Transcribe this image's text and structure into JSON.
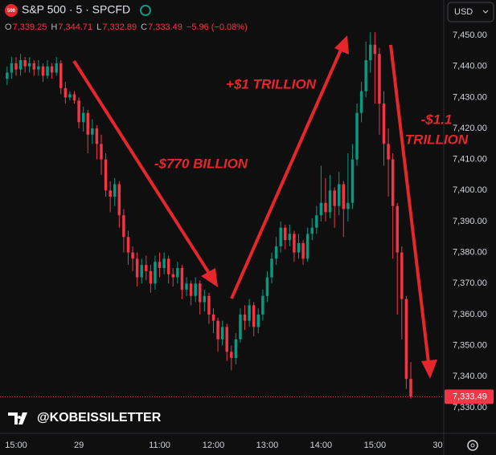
{
  "header": {
    "badge": "500",
    "symbol": "S&P 500 · 5 · SPCFD",
    "readout": [
      {
        "label": "O",
        "value": "7,339.25"
      },
      {
        "label": "H",
        "value": "7,344.71"
      },
      {
        "label": "L",
        "value": "7,332.89"
      },
      {
        "label": "C",
        "value": "7,333.49"
      }
    ],
    "change": "−5.96 (−0.08%)",
    "currency": "USD",
    "watermark": "@KOBEISSILETTER"
  },
  "chart_data": {
    "type": "candlestick",
    "up_color": "#089981",
    "down_color": "#f23645",
    "grid": false,
    "x": [
      0,
      1,
      2,
      3,
      4,
      5,
      6,
      7,
      8,
      9,
      10,
      11,
      12,
      13,
      14,
      15,
      16,
      17,
      18,
      19,
      20,
      21,
      22,
      23,
      24,
      25,
      26,
      27,
      28,
      29,
      30,
      31,
      32,
      33,
      34,
      35,
      36,
      37,
      38,
      39,
      40,
      41,
      42,
      43,
      44,
      45,
      46,
      47,
      48,
      49,
      50,
      51,
      52,
      53,
      54,
      55,
      56,
      57,
      58,
      59,
      60,
      61,
      62,
      63,
      64,
      65,
      66,
      67,
      68,
      69,
      70,
      71,
      72,
      73,
      74,
      75,
      76,
      77,
      78,
      79,
      80,
      81,
      82,
      83,
      84,
      85,
      86,
      87,
      88,
      89,
      90
    ],
    "open": [
      7436,
      7438,
      7441,
      7439,
      7442,
      7440,
      7441,
      7439,
      7440,
      7437,
      7440,
      7438,
      7441,
      7433,
      7430,
      7431,
      7429,
      7422,
      7425,
      7418,
      7420,
      7415,
      7410,
      7400,
      7398,
      7402,
      7392,
      7385,
      7380,
      7378,
      7372,
      7376,
      7374,
      7370,
      7377,
      7375,
      7378,
      7373,
      7372,
      7375,
      7368,
      7370,
      7366,
      7370,
      7364,
      7366,
      7360,
      7358,
      7352,
      7356,
      7348,
      7346,
      7352,
      7360,
      7358,
      7363,
      7356,
      7360,
      7366,
      7372,
      7378,
      7382,
      7388,
      7384,
      7386,
      7380,
      7383,
      7378,
      7386,
      7388,
      7392,
      7396,
      7393,
      7400,
      7395,
      7402,
      7394,
      7396,
      7410,
      7425,
      7432,
      7442,
      7447,
      7444,
      7428,
      7415,
      7410,
      7395,
      7380,
      7365,
      7339.25
    ],
    "high": [
      7440,
      7443,
      7443,
      7444,
      7443,
      7443,
      7442,
      7442,
      7441,
      7442,
      7441,
      7443,
      7442,
      7435,
      7432,
      7432,
      7430,
      7427,
      7426,
      7423,
      7421,
      7418,
      7412,
      7403,
      7404,
      7403,
      7394,
      7387,
      7382,
      7380,
      7378,
      7379,
      7376,
      7379,
      7380,
      7380,
      7379,
      7375,
      7377,
      7376,
      7372,
      7371,
      7372,
      7371,
      7368,
      7367,
      7362,
      7359,
      7358,
      7357,
      7350,
      7354,
      7362,
      7363,
      7365,
      7364,
      7362,
      7368,
      7374,
      7380,
      7385,
      7390,
      7389,
      7389,
      7387,
      7386,
      7384,
      7388,
      7391,
      7395,
      7408,
      7404,
      7405,
      7401,
      7406,
      7403,
      7412,
      7415,
      7428,
      7435,
      7448,
      7451,
      7451,
      7446,
      7432,
      7420,
      7412,
      7396,
      7382,
      7366,
      7344.71
    ],
    "low": [
      7434,
      7436,
      7437,
      7437,
      7438,
      7438,
      7437,
      7437,
      7435,
      7436,
      7436,
      7437,
      7431,
      7428,
      7429,
      7428,
      7420,
      7419,
      7412,
      7415,
      7410,
      7405,
      7398,
      7393,
      7395,
      7388,
      7380,
      7376,
      7374,
      7369,
      7370,
      7371,
      7367,
      7368,
      7372,
      7373,
      7370,
      7369,
      7370,
      7365,
      7366,
      7363,
      7364,
      7360,
      7361,
      7357,
      7354,
      7348,
      7350,
      7345,
      7342,
      7344,
      7351,
      7355,
      7356,
      7353,
      7354,
      7358,
      7364,
      7370,
      7376,
      7380,
      7381,
      7382,
      7377,
      7378,
      7376,
      7377,
      7384,
      7386,
      7390,
      7390,
      7391,
      7388,
      7392,
      7385,
      7390,
      7394,
      7408,
      7422,
      7430,
      7438,
      7428,
      7418,
      7408,
      7398,
      7378,
      7360,
      7352,
      7336,
      7332.89
    ],
    "close": [
      7438,
      7441,
      7439,
      7442,
      7440,
      7441,
      7439,
      7440,
      7437,
      7440,
      7438,
      7441,
      7433,
      7430,
      7431,
      7429,
      7422,
      7425,
      7418,
      7420,
      7415,
      7410,
      7400,
      7398,
      7402,
      7392,
      7385,
      7380,
      7378,
      7372,
      7376,
      7374,
      7370,
      7377,
      7375,
      7378,
      7373,
      7372,
      7375,
      7368,
      7370,
      7366,
      7370,
      7364,
      7366,
      7360,
      7358,
      7352,
      7356,
      7348,
      7346,
      7352,
      7360,
      7358,
      7363,
      7356,
      7360,
      7366,
      7372,
      7378,
      7382,
      7388,
      7384,
      7386,
      7380,
      7383,
      7378,
      7386,
      7388,
      7392,
      7396,
      7393,
      7400,
      7395,
      7402,
      7394,
      7396,
      7410,
      7425,
      7432,
      7442,
      7447,
      7444,
      7428,
      7415,
      7410,
      7395,
      7380,
      7365,
      7339.25,
      7333.49
    ],
    "xlim": [
      -1.58,
      97.35
    ],
    "xticks": [
      {
        "value": 2,
        "label": "15:00"
      },
      {
        "value": 16,
        "label": "29"
      },
      {
        "value": 34,
        "label": "11:00"
      },
      {
        "value": 46,
        "label": "12:00"
      },
      {
        "value": 58,
        "label": "13:00"
      },
      {
        "value": 70,
        "label": "14:00"
      },
      {
        "value": 82,
        "label": "15:00"
      },
      {
        "value": 96,
        "label": "30"
      }
    ],
    "ylim": [
      7321.7,
      7461.4
    ],
    "yticks": [
      {
        "value": 7330,
        "label": "7,330.00"
      },
      {
        "value": 7340,
        "label": "7,340.00"
      },
      {
        "value": 7350,
        "label": "7,350.00"
      },
      {
        "value": 7360,
        "label": "7,360.00"
      },
      {
        "value": 7370,
        "label": "7,370.00"
      },
      {
        "value": 7380,
        "label": "7,380.00"
      },
      {
        "value": 7390,
        "label": "7,390.00"
      },
      {
        "value": 7400,
        "label": "7,400.00"
      },
      {
        "value": 7410,
        "label": "7,410.00"
      },
      {
        "value": 7420,
        "label": "7,420.00"
      },
      {
        "value": 7430,
        "label": "7,430.00"
      },
      {
        "value": 7440,
        "label": "7,440.00"
      },
      {
        "value": 7450,
        "label": "7,450.00"
      }
    ],
    "last_price": {
      "value": 7333.49,
      "label": "7,333.49"
    },
    "annotations": [
      {
        "text": "-$770 BILLION"
      },
      {
        "text": "+$1 TRILLION"
      },
      {
        "lines": [
          "-$1.1",
          "TRILLION"
        ]
      }
    ]
  }
}
